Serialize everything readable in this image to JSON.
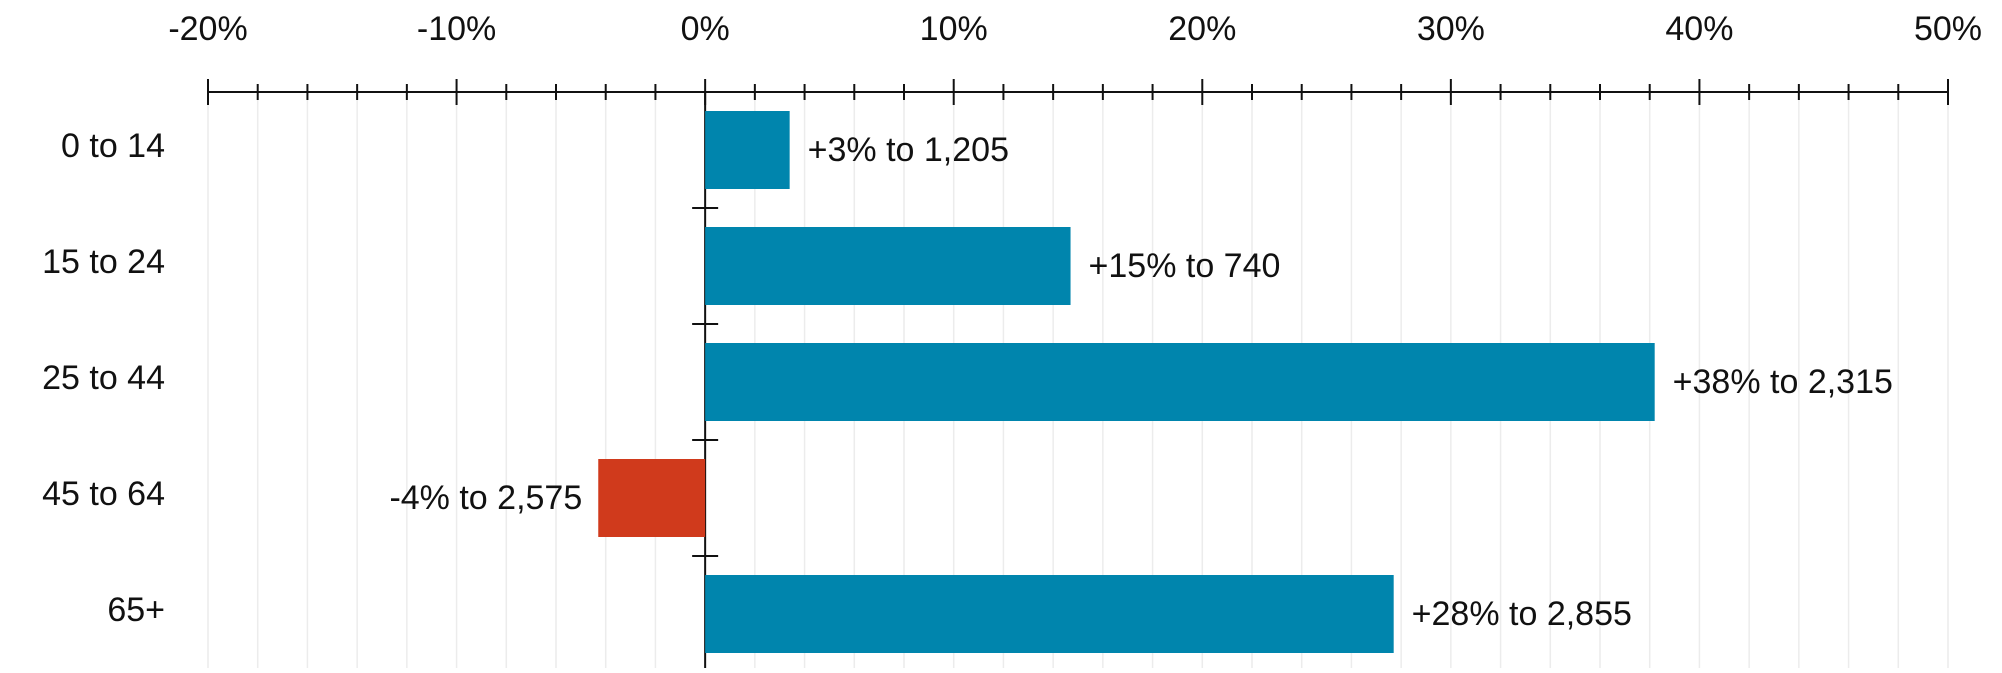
{
  "chart_data": {
    "type": "bar",
    "orientation": "horizontal",
    "categories": [
      "0 to 14",
      "15 to 24",
      "25 to 44",
      "45 to 64",
      "65+"
    ],
    "values": [
      3.4,
      14.7,
      38.2,
      -4.3,
      27.7
    ],
    "data_labels": [
      "+3% to 1,205",
      "+15% to 740",
      "+38% to 2,315",
      "-4% to 2,575",
      "+28% to 2,855"
    ],
    "xlim": [
      -20,
      50
    ],
    "xticks": [
      -20,
      -10,
      0,
      10,
      20,
      30,
      40,
      50
    ],
    "xtick_labels": [
      "-20%",
      "-10%",
      "0%",
      "10%",
      "20%",
      "30%",
      "40%",
      "50%"
    ],
    "minor_tick_step": 2,
    "axis_position": "top",
    "grid": true,
    "colors": {
      "positive": "#0085ad",
      "negative": "#d03a1c",
      "axis": "#111111",
      "grid": "#ececec"
    },
    "title": "",
    "xlabel": "",
    "ylabel": ""
  }
}
